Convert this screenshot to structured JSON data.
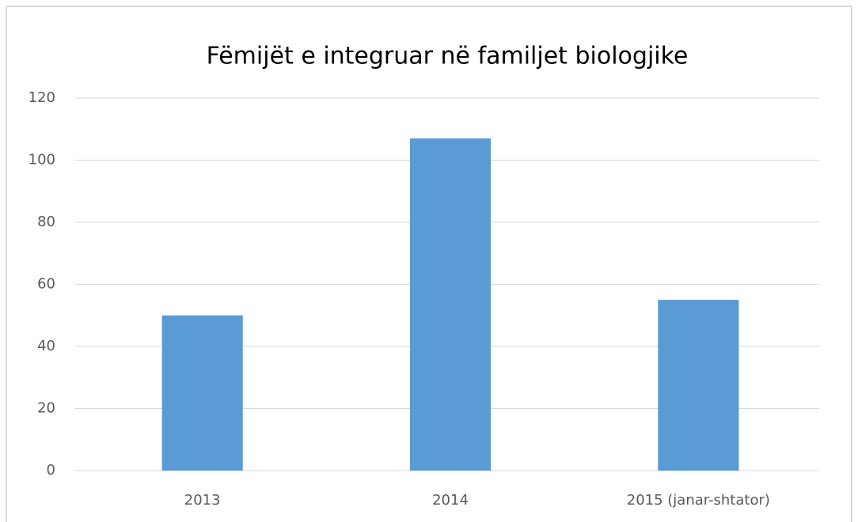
{
  "chart_data": {
    "type": "bar",
    "title": "Fëmijët e integruar në familjet biologjike",
    "categories": [
      "2013",
      "2014",
      "2015 (janar-shtator)"
    ],
    "values": [
      50,
      107,
      55
    ],
    "color": "#5b9bd5",
    "ylim": [
      0,
      120
    ],
    "yticks": [
      0,
      20,
      40,
      60,
      80,
      100,
      120
    ],
    "grid": true
  }
}
